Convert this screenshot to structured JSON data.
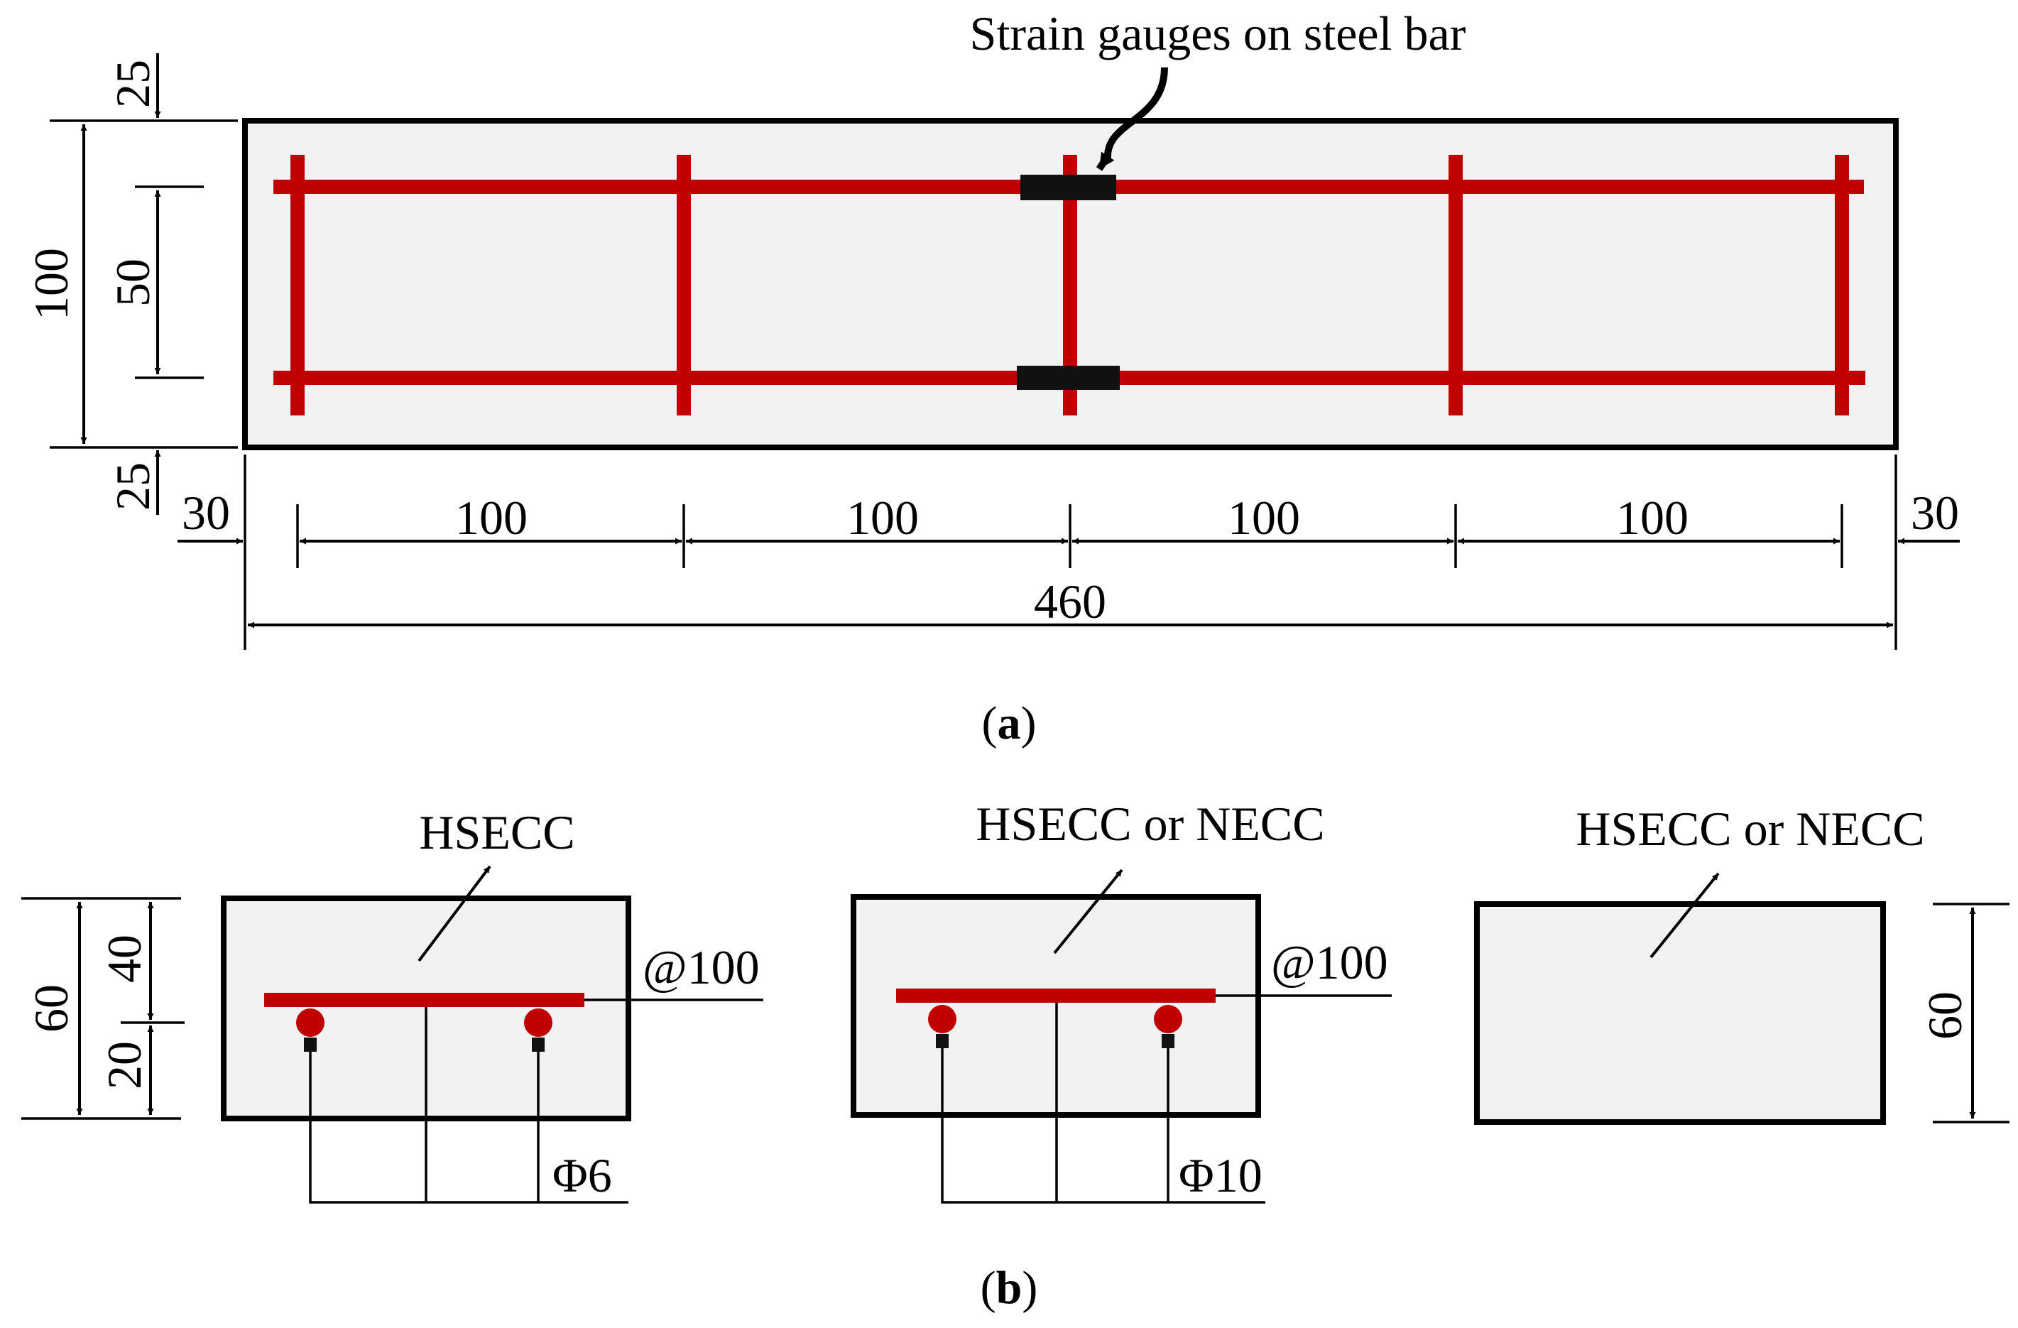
{
  "colors": {
    "steel": "#c00000",
    "gauge": "#111111",
    "concrete": "#f2f2f2",
    "line": "#000000"
  },
  "panel_a": {
    "annotation": "Strain gauges on steel bar",
    "left_dims": {
      "total": "100",
      "cover_top": "25",
      "middle": "50",
      "cover_bottom": "25"
    },
    "bottom_dims": {
      "end_left": "30",
      "spacing_1": "100",
      "spacing_2": "100",
      "spacing_3": "100",
      "spacing_4": "100",
      "end_right": "30",
      "total": "460"
    },
    "caption_open": "(",
    "caption_letter": "a",
    "caption_close": ")"
  },
  "panel_b": {
    "section1": {
      "material": "HSECC",
      "stirrup": "@100",
      "bar": "Φ6",
      "height_total": "60",
      "height_top": "40",
      "height_bottom": "20"
    },
    "section2": {
      "material": "HSECC or NECC",
      "stirrup": "@100",
      "bar": "Φ10"
    },
    "section3": {
      "material": "HSECC or NECC",
      "height": "60"
    },
    "caption_open": "(",
    "caption_letter": "b",
    "caption_close": ")"
  }
}
